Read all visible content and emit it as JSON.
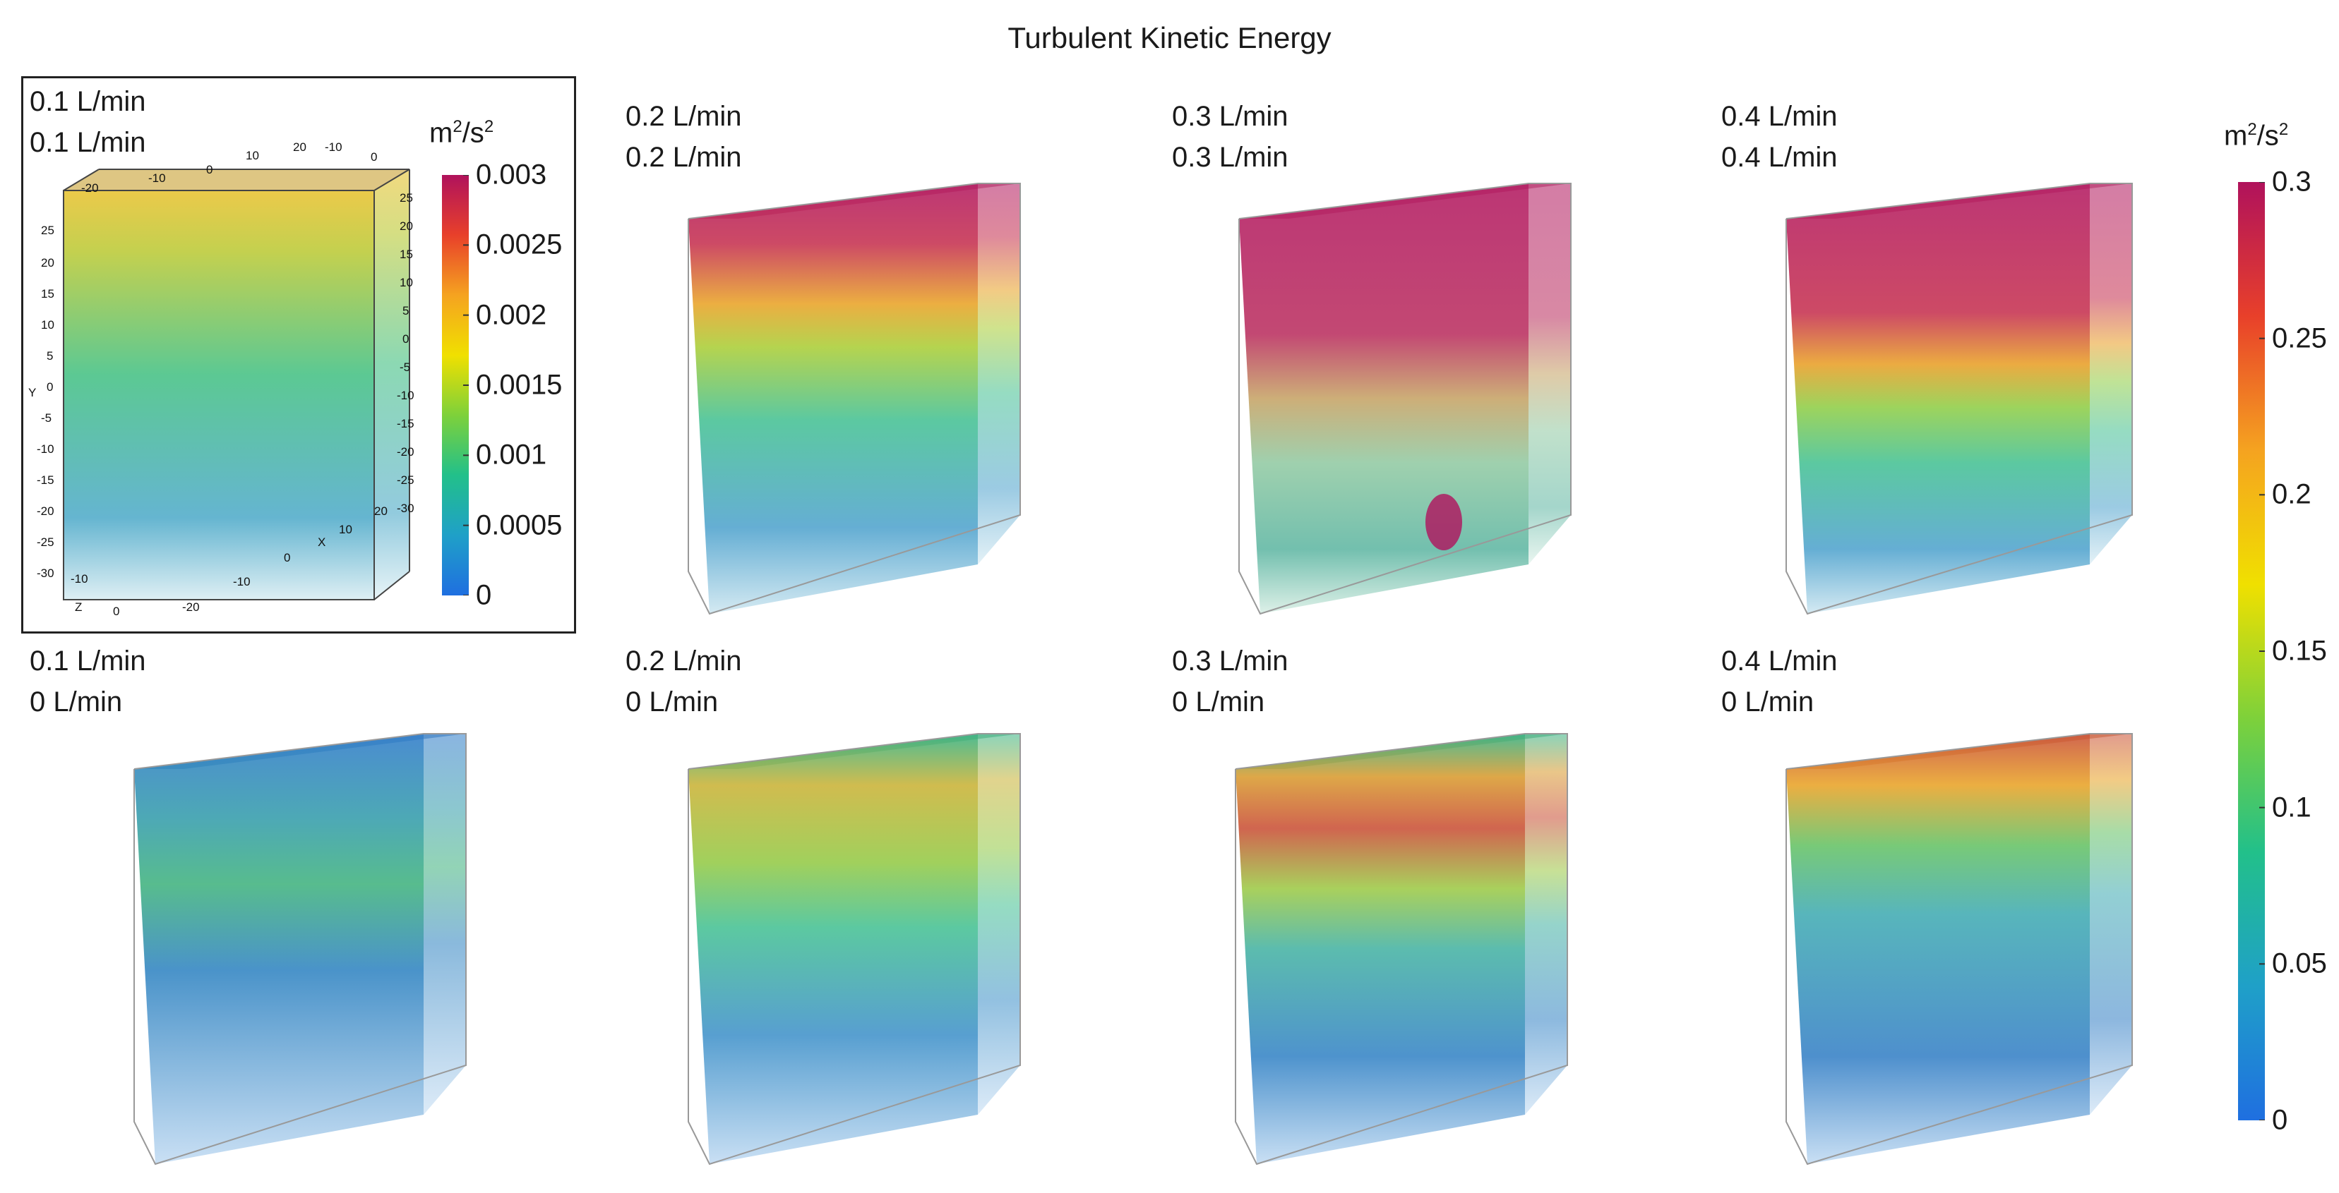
{
  "title": "Turbulent Kinetic Energy",
  "chart_data": {
    "type": "3d-volume-grid",
    "title": "Turbulent Kinetic Energy",
    "panels": [
      {
        "row": 1,
        "col": 1,
        "line1": "0.1 L/min",
        "line2": "0.1 L/min",
        "scale": "inset",
        "has_axes": true
      },
      {
        "row": 1,
        "col": 2,
        "line1": "0.2 L/min",
        "line2": "0.2 L/min",
        "scale": "main",
        "has_axes": false
      },
      {
        "row": 1,
        "col": 3,
        "line1": "0.3 L/min",
        "line2": "0.3 L/min",
        "scale": "main",
        "has_axes": false
      },
      {
        "row": 1,
        "col": 4,
        "line1": "0.4 L/min",
        "line2": "0.4 L/min",
        "scale": "main",
        "has_axes": false
      },
      {
        "row": 2,
        "col": 1,
        "line1": "0.1 L/min",
        "line2": "0 L/min",
        "scale": "main",
        "has_axes": false
      },
      {
        "row": 2,
        "col": 2,
        "line1": "0.2 L/min",
        "line2": "0 L/min",
        "scale": "main",
        "has_axes": false
      },
      {
        "row": 2,
        "col": 3,
        "line1": "0.3 L/min",
        "line2": "0 L/min",
        "scale": "main",
        "has_axes": false
      },
      {
        "row": 2,
        "col": 4,
        "line1": "0.4 L/min",
        "line2": "0 L/min",
        "scale": "main",
        "has_axes": false
      }
    ],
    "colorbars": {
      "inset": {
        "unit_base": "m",
        "unit_exp": "2",
        "unit_mid": "/s",
        "unit_exp2": "2",
        "range": [
          0,
          0.003
        ],
        "ticks": [
          "0",
          "0.0005",
          "0.001",
          "0.0015",
          "0.002",
          "0.0025",
          "0.003"
        ],
        "colors": [
          "#1f6fe0",
          "#1fa0c8",
          "#22c08a",
          "#7ed13a",
          "#f0e000",
          "#f5a320",
          "#e8402a",
          "#b0125c"
        ]
      },
      "main": {
        "unit_base": "m",
        "unit_exp": "2",
        "unit_mid": "/s",
        "unit_exp2": "2",
        "range": [
          0,
          0.3
        ],
        "ticks": [
          "0",
          "0.05",
          "0.1",
          "0.15",
          "0.2",
          "0.25",
          "0.3"
        ],
        "colors": [
          "#1f6fe0",
          "#1fa0c8",
          "#22c08a",
          "#7ed13a",
          "#f0e000",
          "#f5a320",
          "#e8402a",
          "#b0125c"
        ]
      }
    },
    "inset_axes": {
      "x_label": "X",
      "y_label": "Y",
      "z_label": "Z",
      "x_ticks": [
        "-20",
        "-10",
        "0",
        "10",
        "20"
      ],
      "y_ticks": [
        "25",
        "20",
        "15",
        "10",
        "5",
        "0",
        "-5",
        "-10",
        "-15",
        "-20",
        "-25",
        "-30"
      ],
      "z_ticks": [
        "-10",
        "0"
      ],
      "top_x_ticks": [
        "-20",
        "-10",
        "0",
        "10",
        "20"
      ],
      "top_z_ticks": [
        "-10",
        "0"
      ],
      "right_y_ticks": [
        "25",
        "20",
        "15",
        "10",
        "5",
        "0",
        "-5",
        "-10",
        "-15",
        "-20",
        "-25",
        "-30"
      ]
    }
  }
}
